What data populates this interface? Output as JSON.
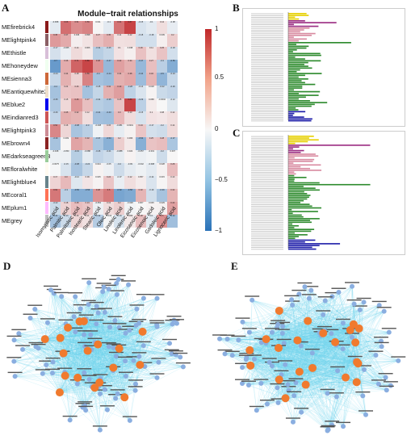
{
  "panels": {
    "a": "A",
    "b": "B",
    "c": "C",
    "d": "D",
    "e": "E"
  },
  "heatmap": {
    "title": "Module−trait relationships",
    "colorbar_ticks": [
      "1",
      "0.5",
      "0",
      "−0.5",
      "−1"
    ],
    "columns": [
      "Isomyristic acid",
      "Palmitic acid",
      "Palmitoleic acid",
      "Isostearic acid",
      "Stearic acid",
      "Oleic acid",
      "Linoleic acid",
      "Linolenic acid",
      "Eicosanoic acid",
      "Eicosenoic acid",
      "Gadoleic acid",
      "Lignoceric acid"
    ],
    "rows": [
      {
        "name": "MEfirebrick4",
        "swatch": "#8b1a1a",
        "values": [
          -0.098,
          0.66,
          0.51,
          0.56,
          0.011,
          -0.1,
          0.64,
          0.87,
          -0.15,
          -0.1,
          0.12,
          -0.08
        ]
      },
      {
        "name": "MElightpink4",
        "swatch": "#8b5f65",
        "values": [
          0.45,
          0.37,
          0.046,
          0.098,
          0.27,
          0.35,
          0.11,
          0.12,
          -0.18,
          -0.18,
          0.039,
          0.2
        ]
      },
      {
        "name": "MEthistle",
        "swatch": "#d8bfd8",
        "values": [
          -0.17,
          -0.065,
          0.14,
          0.066,
          -0.31,
          -0.25,
          0.1,
          0.038,
          0.26,
          0.11,
          0.25,
          -0.18
        ]
      },
      {
        "name": "MEhoneydew",
        "swatch": "#f0fff0",
        "values": [
          -0.7,
          0.36,
          0.71,
          0.86,
          0.48,
          -0.47,
          0.42,
          0.34,
          -0.47,
          0.27,
          -0.3,
          -0.56
        ]
      },
      {
        "name": "MEsienna3",
        "swatch": "#cd6839",
        "values": [
          -0.24,
          0.34,
          0.18,
          0.56,
          -0.4,
          -0.44,
          0.34,
          0.38,
          -0.44,
          0.32,
          -0.5,
          -0.24
        ]
      },
      {
        "name": "MEantiquewhite2",
        "swatch": "#eedfcc",
        "values": [
          -0.4,
          0.24,
          0.26,
          -0.4,
          -0.25,
          0.34,
          0.43,
          -0.28,
          -0.14,
          0.018,
          -0.22,
          -0.26
        ]
      },
      {
        "name": "MEblue2",
        "swatch": "#0000ee",
        "values": [
          -0.35,
          0.15,
          0.46,
          0.27,
          -0.31,
          -0.35,
          0.25,
          0.86,
          -0.29,
          0.058,
          -0.0002,
          -0.12
        ]
      },
      {
        "name": "MEindianred3",
        "swatch": "#cd5555",
        "values": [
          -0.26,
          0.35,
          0.32,
          0.12,
          -0.41,
          -0.43,
          0.3,
          0.13,
          -0.15,
          0.1,
          0.08,
          0.12
        ]
      },
      {
        "name": "MElightpink3",
        "swatch": "#cd8c95",
        "values": [
          0.54,
          0.16,
          -0.38,
          -0.3,
          -0.038,
          0.15,
          -0.081,
          0.0301,
          0.24,
          -0.17,
          -0.2,
          0.14
        ]
      },
      {
        "name": "MEbrown4",
        "swatch": "#8b2323",
        "values": [
          -0.39,
          0.009,
          0.4,
          0.32,
          -0.37,
          -0.53,
          0.2,
          0.066,
          -0.54,
          0.25,
          0.28,
          -0.37
        ]
      },
      {
        "name": "MEdarkseagreen3",
        "swatch": "#9bcd9b",
        "values": [
          -0.048,
          -0.053,
          -0.31,
          -0.088,
          -0.26,
          -0.21,
          -0.088,
          0.022,
          -0.057,
          -0.031,
          -0.2,
          0.007
        ]
      },
      {
        "name": "MEfloralwhite",
        "swatch": "#fffaf0",
        "values": [
          -0.0075,
          -0.15,
          -0.38,
          -0.24,
          0.024,
          -0.05,
          -0.2,
          -0.09,
          -0.042,
          -0.098,
          0.028,
          0.28
        ]
      },
      {
        "name": "MElightblue4",
        "swatch": "#68838b",
        "values": [
          0.17,
          0.3,
          -0.12,
          0.09,
          0.025,
          0.24,
          -0.07,
          0.12,
          0.057,
          -0.14,
          0.015,
          0.13
        ]
      },
      {
        "name": "MEcoral1",
        "swatch": "#ff7256",
        "values": [
          0.62,
          -0.3,
          -0.56,
          -0.56,
          0.48,
          0.6,
          -0.62,
          -0.58,
          0.32,
          -0.19,
          -0.39,
          0.32
        ]
      },
      {
        "name": "MEplum1",
        "swatch": "#ffbbff",
        "values": [
          -0.22,
          0.18,
          0.28,
          0.24,
          -0.052,
          0.13,
          0.2,
          -0.028,
          0.007,
          0.025,
          0.029,
          0.42
        ]
      },
      {
        "name": "MEgrey",
        "swatch": "#bebebe",
        "values": [
          -0.41,
          -0.21,
          0.16,
          0.11,
          -0.32,
          -0.014,
          -0.16,
          0.069,
          0.28,
          -0.1,
          0.5,
          -0.42
        ]
      }
    ]
  }
}
